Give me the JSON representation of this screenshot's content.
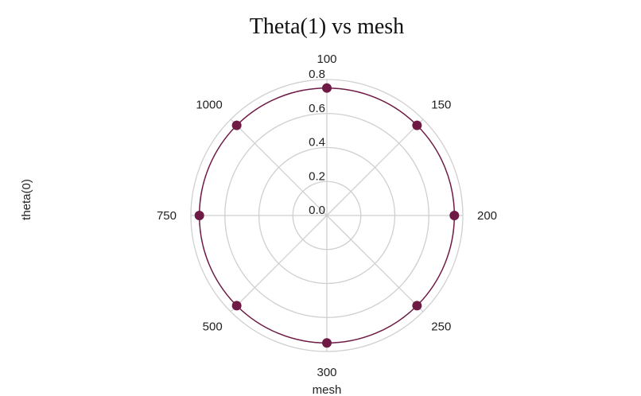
{
  "chart_data": {
    "type": "polar",
    "title": "Theta(1) vs mesh",
    "xlabel": "mesh",
    "ylabel": "theta(0)",
    "categories": [
      "100",
      "150",
      "200",
      "250",
      "300",
      "500",
      "750",
      "1000"
    ],
    "series": [
      {
        "values": [
          0.75,
          0.75,
          0.75,
          0.75,
          0.75,
          0.75,
          0.75,
          0.75
        ]
      }
    ],
    "rlim": [
      0,
      0.8
    ],
    "rticks": [
      "0.0",
      "0.2",
      "0.4",
      "0.6",
      "0.8"
    ],
    "grid": true,
    "colors": {
      "series": "#6e1a45",
      "grid": "#cfcfcf"
    }
  }
}
